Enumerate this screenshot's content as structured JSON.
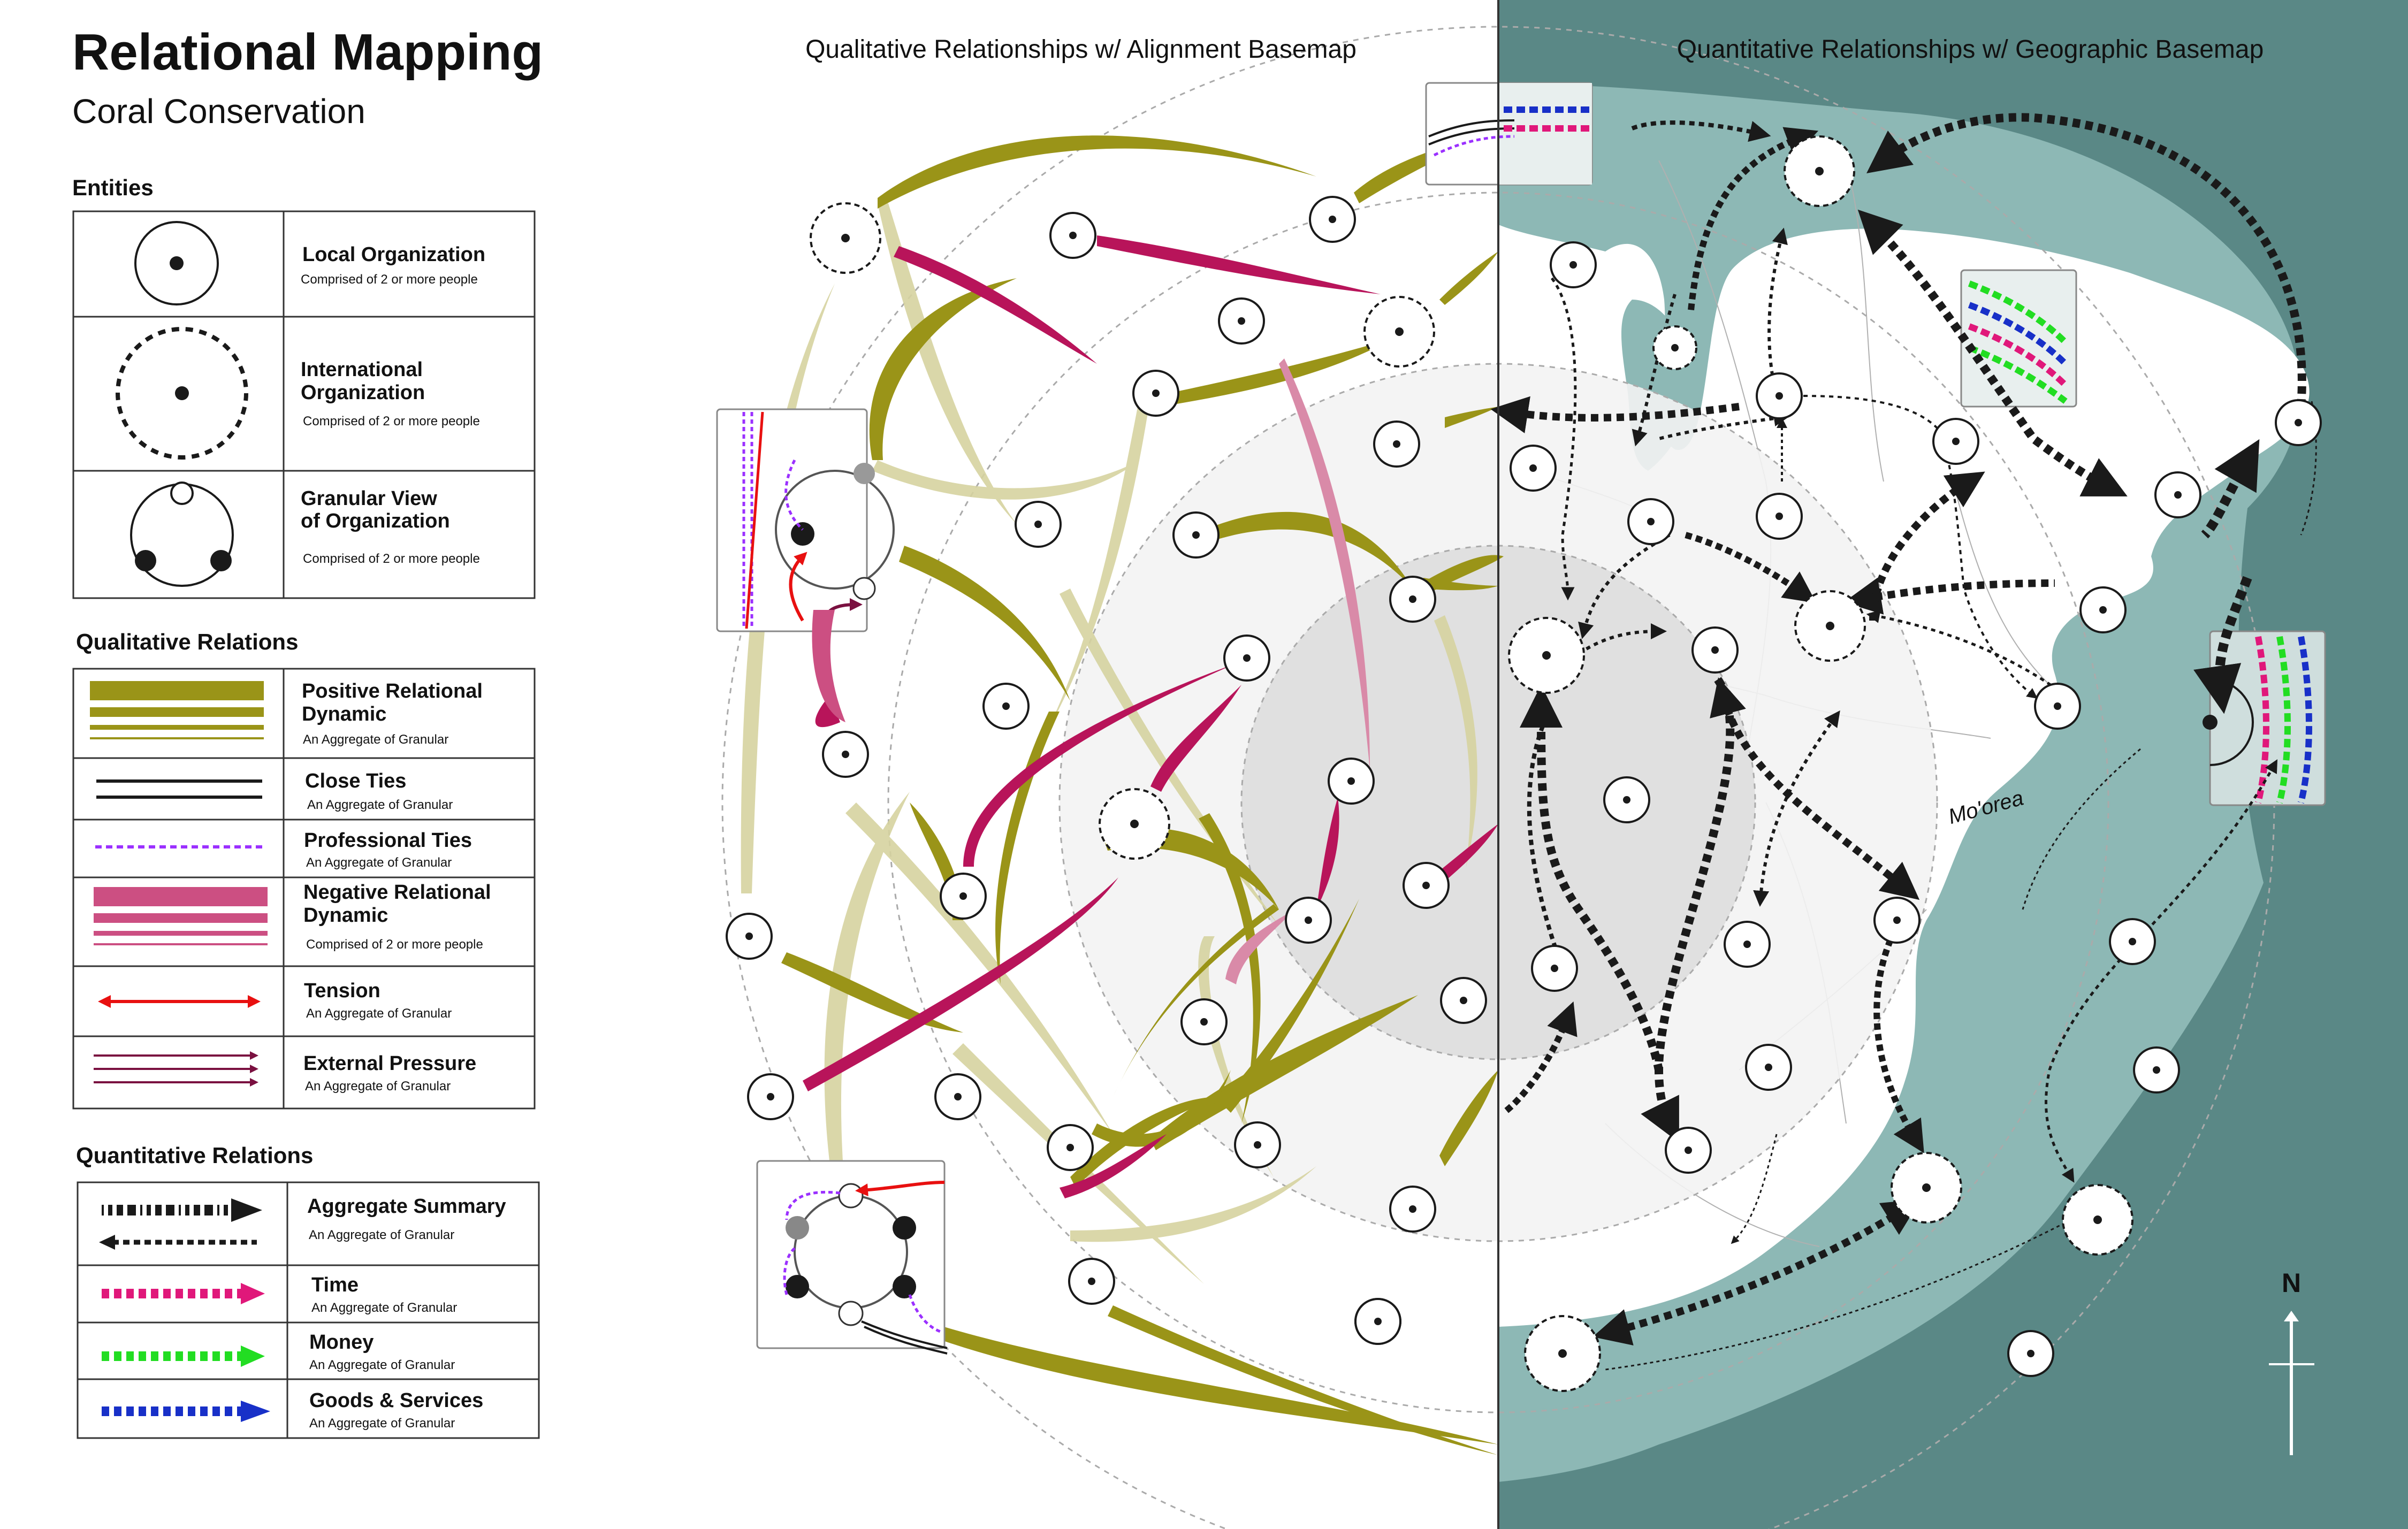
{
  "header": {
    "title": "Relational Mapping",
    "subtitle": "Coral Conservation"
  },
  "panels": {
    "left_title": "Qualitative Relationships w/ Alignment Basemap",
    "right_title": "Quantitative Relationships w/ Geographic Basemap"
  },
  "legend": {
    "entities": {
      "heading": "Entities",
      "items": [
        {
          "label": "Local Organization",
          "note": "Comprised of 2 or more people"
        },
        {
          "label1": "International",
          "label2": "Organization",
          "note": "Comprised of 2 or more people"
        },
        {
          "label1": "Granular View",
          "label2": "of Organization",
          "note": "Comprised of 2 or more people"
        }
      ]
    },
    "qualitative": {
      "heading": "Qualitative Relations",
      "items": [
        {
          "label1": "Positive Relational",
          "label2": "Dynamic",
          "note": "An Aggregate of Granular"
        },
        {
          "label": "Close Ties",
          "note": "An Aggregate of Granular"
        },
        {
          "label": "Professional Ties",
          "note": "An Aggregate of Granular"
        },
        {
          "label1": "Negative Relational",
          "label2": "Dynamic",
          "note": "Comprised of 2 or more people"
        },
        {
          "label": "Tension",
          "note": "An Aggregate of Granular"
        },
        {
          "label": "External Pressure",
          "note": "An Aggregate of Granular"
        }
      ]
    },
    "quantitative": {
      "heading": "Quantitative Relations",
      "items": [
        {
          "label": "Aggregate Summary",
          "note": "An Aggregate of Granular"
        },
        {
          "label": "Time",
          "note": "An Aggregate of Granular"
        },
        {
          "label": "Money",
          "note": "An Aggregate of Granular"
        },
        {
          "label": "Goods & Services",
          "note": "An Aggregate of Granular"
        }
      ]
    }
  },
  "map": {
    "island_label": "Mo'orea",
    "north_label": "N"
  },
  "colors": {
    "positive": "#9a9418",
    "positive_light": "#d6d3a0",
    "negative": "#b8145a",
    "negative_light": "#d98aa8",
    "tension": "#e81010",
    "external": "#7a1040",
    "professional": "#9b30ff",
    "time": "#e0187a",
    "money": "#22dd22",
    "goods": "#1830c8",
    "ocean_deep": "#5a8886",
    "ocean_reef": "#8db8b5",
    "rings": "#eeeeee"
  },
  "icons": [
    "local-organization-icon",
    "international-organization-icon",
    "granular-view-icon",
    "north-arrow-icon"
  ]
}
